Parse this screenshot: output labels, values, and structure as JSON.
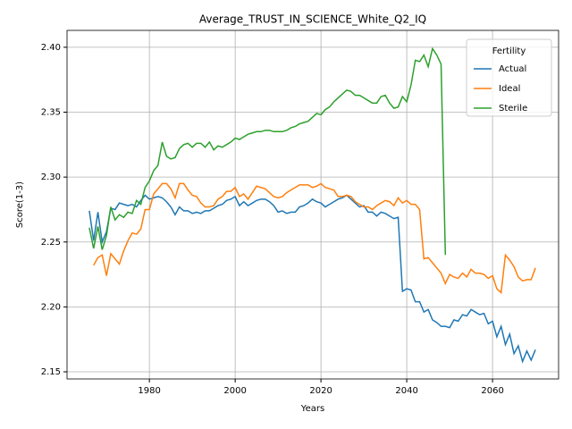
{
  "chart_data": {
    "type": "line",
    "title": "Average_TRUST_IN_SCIENCE_White_Q2_IQ",
    "x_label": "Years",
    "y_label": "Score(1-3)",
    "x": [
      1966,
      1967,
      1968,
      1969,
      1970,
      1971,
      1972,
      1973,
      1974,
      1975,
      1976,
      1977,
      1978,
      1979,
      1980,
      1981,
      1982,
      1983,
      1984,
      1985,
      1986,
      1987,
      1988,
      1989,
      1990,
      1991,
      1992,
      1993,
      1994,
      1995,
      1996,
      1997,
      1998,
      1999,
      2000,
      2001,
      2002,
      2003,
      2004,
      2005,
      2006,
      2007,
      2008,
      2009,
      2010,
      2011,
      2012,
      2013,
      2014,
      2015,
      2016,
      2017,
      2018,
      2019,
      2020,
      2021,
      2022,
      2023,
      2024,
      2025,
      2026,
      2027,
      2028,
      2029,
      2030,
      2031,
      2032,
      2033,
      2034,
      2035,
      2036,
      2037,
      2038,
      2039,
      2040,
      2041,
      2042,
      2043,
      2044,
      2045,
      2046,
      2047,
      2048,
      2049,
      2050,
      2051,
      2052,
      2053,
      2054,
      2055,
      2056,
      2057,
      2058,
      2059,
      2060,
      2061,
      2062,
      2063,
      2064,
      2065,
      2066,
      2067,
      2068,
      2069,
      2070
    ],
    "series": [
      {
        "name": "Actual",
        "color": "#1f77b4",
        "values": [
          2.274,
          2.251,
          2.273,
          2.25,
          2.258,
          2.276,
          2.275,
          2.28,
          2.279,
          2.278,
          2.279,
          2.277,
          2.282,
          2.286,
          2.283,
          2.284,
          2.285,
          2.284,
          2.281,
          2.277,
          2.271,
          2.277,
          2.274,
          2.274,
          2.272,
          2.273,
          2.272,
          2.274,
          2.274,
          2.276,
          2.278,
          2.279,
          2.282,
          2.283,
          2.285,
          2.278,
          2.281,
          2.278,
          2.28,
          2.282,
          2.283,
          2.283,
          2.281,
          2.278,
          2.273,
          2.274,
          2.272,
          2.273,
          2.273,
          2.277,
          2.278,
          2.28,
          2.283,
          2.281,
          2.28,
          2.277,
          2.279,
          2.281,
          2.283,
          2.284,
          2.286,
          2.283,
          2.28,
          2.277,
          2.278,
          2.273,
          2.273,
          2.27,
          2.273,
          2.272,
          2.27,
          2.268,
          2.269,
          2.212,
          2.214,
          2.213,
          2.204,
          2.204,
          2.196,
          2.198,
          2.19,
          2.188,
          2.185,
          2.185,
          2.184,
          2.19,
          2.189,
          2.194,
          2.193,
          2.198,
          2.196,
          2.194,
          2.195,
          2.187,
          2.189,
          2.177,
          2.185,
          2.171,
          2.179,
          2.164,
          2.17,
          2.158,
          2.166,
          2.159,
          2.167
        ]
      },
      {
        "name": "Ideal",
        "color": "#ff7f0e",
        "values": [
          null,
          2.232,
          2.238,
          2.24,
          2.224,
          2.241,
          2.237,
          2.233,
          2.243,
          2.251,
          2.257,
          2.256,
          2.26,
          2.275,
          2.275,
          2.287,
          2.291,
          2.295,
          2.295,
          2.291,
          2.284,
          2.295,
          2.295,
          2.29,
          2.286,
          2.285,
          2.28,
          2.277,
          2.277,
          2.278,
          2.283,
          2.285,
          2.289,
          2.289,
          2.292,
          2.285,
          2.287,
          2.283,
          2.288,
          2.293,
          2.292,
          2.291,
          2.288,
          2.285,
          2.284,
          2.285,
          2.288,
          2.29,
          2.292,
          2.294,
          2.294,
          2.294,
          2.292,
          2.293,
          2.295,
          2.292,
          2.291,
          2.29,
          2.285,
          2.285,
          2.286,
          2.285,
          2.281,
          2.279,
          2.277,
          2.277,
          2.275,
          2.278,
          2.28,
          2.282,
          2.281,
          2.278,
          2.284,
          2.28,
          2.282,
          2.279,
          2.279,
          2.275,
          2.237,
          2.238,
          2.234,
          2.23,
          2.226,
          2.218,
          2.225,
          2.223,
          2.222,
          2.226,
          2.223,
          2.229,
          2.226,
          2.226,
          2.225,
          2.222,
          2.224,
          2.214,
          2.211,
          2.24,
          2.236,
          2.231,
          2.223,
          2.22,
          2.221,
          2.221,
          2.23
        ]
      },
      {
        "name": "Sterile",
        "color": "#2ca02c",
        "values": [
          2.261,
          2.245,
          2.262,
          2.244,
          2.255,
          2.277,
          2.267,
          2.271,
          2.269,
          2.273,
          2.272,
          2.282,
          2.279,
          2.292,
          2.297,
          2.305,
          2.309,
          2.327,
          2.316,
          2.314,
          2.315,
          2.322,
          2.325,
          2.326,
          2.323,
          2.326,
          2.326,
          2.323,
          2.327,
          2.321,
          2.324,
          2.323,
          2.325,
          2.327,
          2.33,
          2.329,
          2.331,
          2.333,
          2.334,
          2.335,
          2.335,
          2.336,
          2.336,
          2.335,
          2.335,
          2.335,
          2.336,
          2.338,
          2.339,
          2.341,
          2.342,
          2.343,
          2.346,
          2.349,
          2.348,
          2.352,
          2.354,
          2.358,
          2.361,
          2.364,
          2.367,
          2.366,
          2.363,
          2.363,
          2.361,
          2.359,
          2.357,
          2.357,
          2.362,
          2.363,
          2.357,
          2.353,
          2.354,
          2.362,
          2.358,
          2.371,
          2.39,
          2.389,
          2.394,
          2.385,
          2.399,
          2.394,
          2.387,
          2.24,
          null,
          null,
          null,
          null,
          null,
          null,
          null,
          null,
          null,
          null,
          null,
          null,
          null,
          null,
          null,
          null,
          null,
          null,
          null,
          null,
          null
        ]
      }
    ],
    "xlim": [
      1960.8,
      2075.4
    ],
    "ylim": [
      2.1445,
      2.413
    ],
    "xticks": [
      1980,
      2000,
      2020,
      2040,
      2060
    ],
    "yticks": [
      2.15,
      {
        "value": 2.2,
        "label": "2.20"
      },
      2.25,
      {
        "value": 2.3,
        "label": "2.30"
      },
      2.35,
      {
        "value": 2.4,
        "label": "2.40"
      }
    ],
    "grid": true,
    "legend_title": "Fertility",
    "legend_position": "upper right"
  }
}
